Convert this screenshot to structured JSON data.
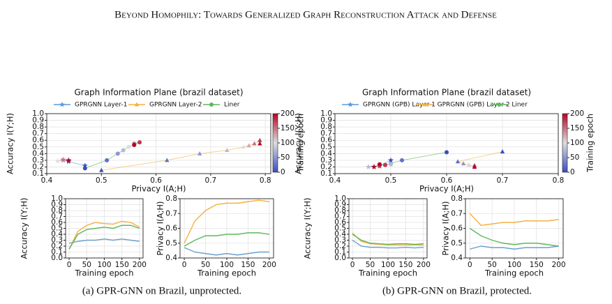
{
  "header": {
    "title": "Beyond Homophily: Towards Generalized Graph Reconstruction Attack and Defense"
  },
  "captions": [
    "(a) GPR-GNN on Brazil, unprotected.",
    "(b) GPR-GNN on Brazil, protected."
  ],
  "chart_data": [
    {
      "type": "scatter",
      "title": "Graph Information Plane (brazil dataset)",
      "xlabel": "Privacy I(A;H)",
      "ylabel": "Accuracy I(Y;H)",
      "xlim": [
        0.4,
        0.81
      ],
      "xticks": [
        0.4,
        0.5,
        0.6,
        0.7,
        0.8
      ],
      "ylim": [
        0.1,
        1.0
      ],
      "yticks": [
        0.1,
        0.2,
        0.3,
        0.4,
        0.5,
        0.6,
        0.7,
        0.8,
        0.9,
        {
          "value": 1.0,
          "label": "1.0"
        }
      ],
      "grid": true,
      "colormap": "coolwarm",
      "colorbar": {
        "label": "Training epoch",
        "lim": [
          0,
          200
        ],
        "ticks": [
          0,
          50,
          100,
          150,
          200
        ]
      },
      "epochs": [
        0,
        25,
        50,
        75,
        100,
        125,
        150,
        175,
        200
      ],
      "series": [
        {
          "name": "GPRGNN Layer-1",
          "color": "#5b9bd5",
          "marker": "star",
          "x": [
            0.47,
            0.44,
            0.43,
            0.43,
            0.42,
            0.43,
            0.43,
            0.44,
            0.44
          ],
          "y": [
            0.22,
            0.28,
            0.3,
            0.3,
            0.29,
            0.3,
            0.31,
            0.29,
            0.3
          ]
        },
        {
          "name": "GPRGNN Layer-2",
          "color": "#f5b041",
          "marker": "triangle",
          "x": [
            0.5,
            0.62,
            0.68,
            0.73,
            0.76,
            0.77,
            0.78,
            0.79,
            0.79
          ],
          "y": [
            0.15,
            0.3,
            0.4,
            0.45,
            0.5,
            0.52,
            0.55,
            0.6,
            0.55
          ]
        },
        {
          "name": "Liner",
          "color": "#5cb85c",
          "marker": "circle",
          "x": [
            0.47,
            0.51,
            0.53,
            0.54,
            0.55,
            0.56,
            0.56,
            0.57,
            0.56
          ],
          "y": [
            0.18,
            0.3,
            0.4,
            0.45,
            0.5,
            0.53,
            0.55,
            0.57,
            0.53
          ]
        }
      ]
    },
    {
      "type": "line",
      "xlabel": "Training epoch",
      "ylabel": "Accuracy I(Y;H)",
      "x": [
        0,
        25,
        50,
        75,
        100,
        125,
        150,
        175,
        200
      ],
      "xlim": [
        -10,
        210
      ],
      "xticks": [
        0,
        50,
        100,
        150,
        200
      ],
      "ylim": [
        0,
        1
      ],
      "yticks": [
        {
          "value": 0,
          "label": "0.0"
        },
        0.1,
        0.2,
        0.3,
        0.4,
        0.5,
        0.6,
        0.7,
        0.8,
        0.9,
        {
          "value": 1,
          "label": "1.0"
        }
      ],
      "grid": true,
      "series": [
        {
          "color": "#6a9fcb",
          "values": [
            0.25,
            0.28,
            0.3,
            0.3,
            0.32,
            0.3,
            0.32,
            0.3,
            0.28
          ]
        },
        {
          "color": "#f5b041",
          "values": [
            0.15,
            0.45,
            0.55,
            0.6,
            0.58,
            0.57,
            0.62,
            0.6,
            0.52
          ]
        },
        {
          "color": "#5cb85c",
          "values": [
            0.15,
            0.4,
            0.48,
            0.5,
            0.52,
            0.5,
            0.55,
            0.55,
            0.5
          ]
        }
      ]
    },
    {
      "type": "line",
      "xlabel": "Training epoch",
      "ylabel": "Privacy I(A;H)",
      "x": [
        0,
        25,
        50,
        75,
        100,
        125,
        150,
        175,
        200
      ],
      "xlim": [
        -10,
        210
      ],
      "xticks": [
        0,
        50,
        100,
        150,
        200
      ],
      "ylim": [
        0.4,
        0.8
      ],
      "yticks": [
        0.4,
        0.5,
        0.6,
        0.7,
        0.8
      ],
      "grid": true,
      "series": [
        {
          "color": "#6a9fcb",
          "values": [
            0.47,
            0.44,
            0.43,
            0.42,
            0.43,
            0.42,
            0.43,
            0.44,
            0.44
          ]
        },
        {
          "color": "#f5b041",
          "values": [
            0.5,
            0.65,
            0.72,
            0.76,
            0.77,
            0.77,
            0.78,
            0.79,
            0.78
          ]
        },
        {
          "color": "#5cb85c",
          "values": [
            0.48,
            0.52,
            0.55,
            0.55,
            0.56,
            0.56,
            0.57,
            0.57,
            0.56
          ]
        }
      ]
    },
    {
      "type": "scatter",
      "title": "Graph Information Plane (brazil dataset)",
      "xlabel": "Privacy I(A;H)",
      "ylabel": "Accuracy I(Y;H)",
      "xlim": [
        0.4,
        0.8
      ],
      "xticks": [
        0.4,
        0.5,
        0.6,
        0.7,
        0.8
      ],
      "ylim": [
        0.1,
        1.0
      ],
      "yticks": [
        0.1,
        0.2,
        0.3,
        0.4,
        0.5,
        0.6,
        0.7,
        0.8,
        0.9,
        {
          "value": 1.0,
          "label": "1.0"
        }
      ],
      "grid": true,
      "colormap": "coolwarm",
      "colorbar": {
        "label": "Training epoch",
        "lim": [
          0,
          200
        ],
        "ticks": [
          0,
          50,
          100,
          150,
          200
        ]
      },
      "epochs": [
        0,
        25,
        50,
        75,
        100,
        125,
        150,
        175,
        200
      ],
      "series": [
        {
          "name": "GPRGNN (GPB) Layer-1",
          "color": "#5b9bd5",
          "marker": "star",
          "x": [
            0.5,
            0.48,
            0.47,
            0.46,
            0.47,
            0.47,
            0.47,
            0.48,
            0.47
          ],
          "y": [
            0.3,
            0.22,
            0.2,
            0.2,
            0.21,
            0.2,
            0.2,
            0.21,
            0.2
          ]
        },
        {
          "name": "GPRGNN (GPB) Layer-2",
          "color": "#f5b041",
          "marker": "triangle",
          "x": [
            0.7,
            0.62,
            0.63,
            0.64,
            0.64,
            0.65,
            0.65,
            0.65,
            0.65
          ],
          "y": [
            0.43,
            0.28,
            0.25,
            0.23,
            0.22,
            0.22,
            0.22,
            0.22,
            0.2
          ]
        },
        {
          "name": "Liner",
          "color": "#5cb85c",
          "marker": "circle",
          "x": [
            0.6,
            0.52,
            0.5,
            0.5,
            0.49,
            0.49,
            0.49,
            0.49,
            0.48
          ],
          "y": [
            0.42,
            0.3,
            0.25,
            0.24,
            0.24,
            0.23,
            0.23,
            0.23,
            0.24
          ]
        }
      ]
    },
    {
      "type": "line",
      "xlabel": "Training epoch",
      "ylabel": "Accuracy I(Y;H)",
      "x": [
        0,
        25,
        50,
        75,
        100,
        125,
        150,
        175,
        200
      ],
      "xlim": [
        -10,
        210
      ],
      "xticks": [
        0,
        50,
        100,
        150,
        200
      ],
      "ylim": [
        0,
        1
      ],
      "yticks": [
        {
          "value": 0,
          "label": "0.0"
        },
        0.1,
        0.2,
        0.3,
        0.4,
        0.5,
        0.6,
        0.7,
        0.8,
        0.9,
        {
          "value": 1,
          "label": "1.0"
        }
      ],
      "grid": true,
      "series": [
        {
          "color": "#6a9fcb",
          "values": [
            0.3,
            0.2,
            0.18,
            0.18,
            0.17,
            0.17,
            0.18,
            0.17,
            0.18
          ]
        },
        {
          "color": "#f5b041",
          "values": [
            0.42,
            0.28,
            0.24,
            0.23,
            0.22,
            0.22,
            0.22,
            0.22,
            0.22
          ]
        },
        {
          "color": "#5cb85c",
          "values": [
            0.4,
            0.3,
            0.25,
            0.24,
            0.23,
            0.24,
            0.24,
            0.23,
            0.24
          ]
        }
      ]
    },
    {
      "type": "line",
      "xlabel": "Training epoch",
      "ylabel": "Privacy I(A;H)",
      "x": [
        0,
        25,
        50,
        75,
        100,
        125,
        150,
        175,
        200
      ],
      "xlim": [
        -10,
        210
      ],
      "xticks": [
        0,
        50,
        100,
        150,
        200
      ],
      "ylim": [
        0.4,
        0.8
      ],
      "yticks": [
        0.4,
        0.5,
        0.6,
        0.7,
        0.8
      ],
      "grid": true,
      "series": [
        {
          "color": "#6a9fcb",
          "values": [
            0.46,
            0.48,
            0.47,
            0.47,
            0.46,
            0.47,
            0.47,
            0.47,
            0.48
          ]
        },
        {
          "color": "#f5b041",
          "values": [
            0.7,
            0.62,
            0.63,
            0.64,
            0.64,
            0.65,
            0.65,
            0.65,
            0.66
          ]
        },
        {
          "color": "#5cb85c",
          "values": [
            0.6,
            0.55,
            0.52,
            0.5,
            0.49,
            0.5,
            0.5,
            0.49,
            0.48
          ]
        }
      ]
    }
  ]
}
